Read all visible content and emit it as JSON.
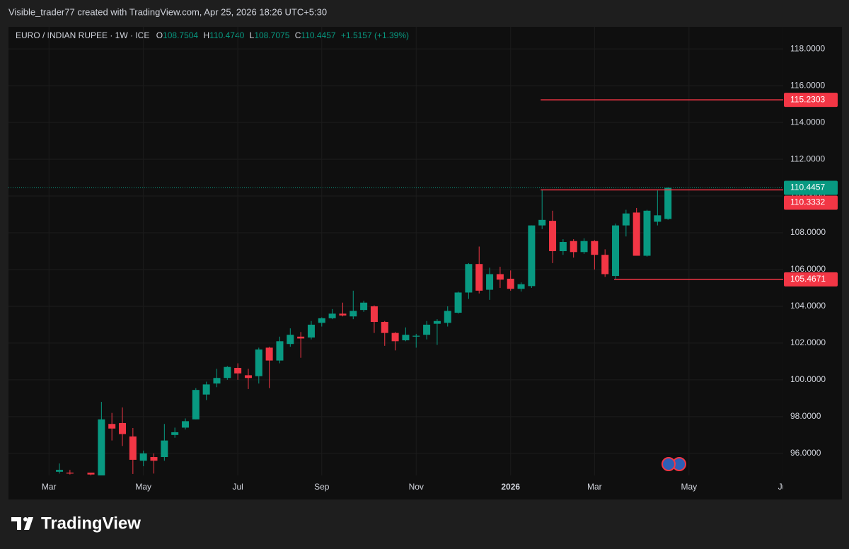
{
  "header": {
    "attribution": "Visible_trader77 created with TradingView.com, Apr 25, 2026 18:26 UTC+5:30",
    "ohlc": [
      {
        "key": "O",
        "text": "108.7504"
      },
      {
        "key": "H",
        "text": "110.4740"
      },
      {
        "key": "L",
        "text": "108.7075"
      },
      {
        "key": "C",
        "text": "110.4457"
      }
    ],
    "change": "+1.5157 (+1.39%)"
  },
  "footer": {
    "logo": "TradingView"
  },
  "chart_data": {
    "type": "candlestick",
    "title": "EURO / INDIAN RUPEE · 1W · ICE",
    "categories": [
      "Mar",
      null,
      null,
      null,
      null,
      null,
      null,
      null,
      null,
      "May",
      null,
      null,
      null,
      null,
      null,
      null,
      null,
      null,
      "Jul",
      null,
      null,
      null,
      null,
      null,
      null,
      null,
      "Sep",
      null,
      null,
      null,
      null,
      null,
      null,
      null,
      null,
      "Nov",
      null,
      null,
      null,
      null,
      null,
      null,
      null,
      null,
      "2026",
      null,
      null,
      null,
      null,
      null,
      null,
      null,
      "Mar",
      null,
      null,
      null,
      null,
      null,
      null,
      null,
      null,
      "May",
      null,
      null,
      null,
      null,
      null,
      null,
      null,
      null,
      "Jul"
    ],
    "open": [
      null,
      95.0,
      94.95,
      null,
      94.95,
      94.8,
      97.6,
      97.65,
      96.92,
      95.6,
      95.8,
      95.8,
      97.0,
      97.4,
      97.85,
      99.2,
      99.8,
      100.1,
      100.65,
      100.25,
      100.2,
      101.75,
      101.05,
      101.95,
      102.35,
      102.3,
      103.1,
      103.35,
      103.6,
      103.45,
      103.8,
      104.0,
      103.15,
      102.55,
      102.15,
      102.35,
      102.45,
      103.05,
      103.1,
      103.65,
      104.75,
      106.3,
      104.9,
      105.75,
      105.5,
      104.95,
      105.1,
      108.4,
      108.65,
      107.0,
      107.55,
      106.95,
      107.55,
      106.8,
      105.65,
      108.4,
      109.1,
      106.75,
      108.6,
      108.7504,
      null,
      null,
      null,
      null,
      null,
      null,
      null,
      null,
      null,
      null,
      null
    ],
    "high": [
      null,
      95.45,
      95.1,
      null,
      94.95,
      98.8,
      98.2,
      98.5,
      97.38,
      96.15,
      96.0,
      97.6,
      97.4,
      97.9,
      99.55,
      99.9,
      100.6,
      100.75,
      100.9,
      100.6,
      101.75,
      101.8,
      102.35,
      102.8,
      102.6,
      103.2,
      103.4,
      103.85,
      104.2,
      104.85,
      104.3,
      104.05,
      103.2,
      102.6,
      102.85,
      102.5,
      103.2,
      103.3,
      104.0,
      104.8,
      106.35,
      107.25,
      106.1,
      106.15,
      105.95,
      105.3,
      108.4,
      110.3332,
      109.2,
      107.65,
      107.65,
      107.7,
      107.6,
      107.1,
      108.5,
      109.25,
      109.35,
      109.25,
      110.3,
      110.474,
      null,
      null,
      null,
      null,
      null,
      null,
      null,
      null,
      null,
      null,
      null
    ],
    "low": [
      null,
      94.9,
      94.85,
      null,
      94.8,
      94.8,
      96.7,
      96.4,
      94.88,
      95.3,
      94.9,
      95.6,
      96.85,
      97.3,
      97.85,
      98.9,
      99.6,
      100.0,
      100.0,
      99.5,
      99.8,
      99.55,
      100.9,
      101.8,
      101.2,
      102.2,
      102.9,
      103.3,
      103.45,
      103.3,
      103.7,
      102.55,
      101.85,
      101.6,
      102.1,
      101.75,
      102.2,
      101.9,
      102.9,
      103.6,
      104.4,
      104.7,
      104.35,
      105.0,
      104.85,
      104.8,
      105.0,
      108.2,
      106.35,
      106.8,
      106.65,
      106.85,
      106.0,
      105.6,
      105.4671,
      107.8,
      106.75,
      106.7,
      108.4,
      108.7075,
      null,
      null,
      null,
      null,
      null,
      null,
      null,
      null,
      null,
      null,
      null
    ],
    "close": [
      null,
      95.1,
      94.9,
      null,
      94.85,
      97.85,
      97.35,
      97.05,
      95.65,
      96.0,
      95.6,
      96.7,
      97.15,
      97.75,
      99.45,
      99.75,
      100.1,
      100.7,
      100.35,
      100.1,
      101.65,
      101.05,
      102.1,
      102.45,
      102.25,
      103.0,
      103.35,
      103.6,
      103.5,
      103.75,
      104.2,
      103.15,
      102.55,
      102.1,
      102.45,
      102.4,
      103.0,
      103.2,
      103.75,
      104.75,
      106.3,
      104.85,
      105.75,
      105.45,
      104.95,
      105.2,
      108.4,
      108.7,
      107.0,
      107.5,
      106.95,
      107.55,
      106.8,
      105.75,
      108.4,
      109.05,
      106.75,
      109.2,
      108.95,
      110.4457,
      null,
      null,
      null,
      null,
      null,
      null,
      null,
      null,
      null,
      null,
      null
    ],
    "up_color": "#089981",
    "down_color": "#f23645",
    "ylim": [
      94.8,
      119.2
    ],
    "yticks": [
      {
        "value": 96,
        "label": "96.0000"
      },
      {
        "value": 98,
        "label": "98.0000"
      },
      {
        "value": 100,
        "label": "100.0000"
      },
      {
        "value": 102,
        "label": "102.0000"
      },
      {
        "value": 104,
        "label": "104.0000"
      },
      {
        "value": 106,
        "label": "106.0000"
      },
      {
        "value": 108,
        "label": "108.0000"
      },
      {
        "value": 110,
        "label": "110.0000"
      },
      {
        "value": 112,
        "label": "112.0000"
      },
      {
        "value": 114,
        "label": "114.0000"
      },
      {
        "value": 116,
        "label": "116.0000"
      },
      {
        "value": 118,
        "label": "118.0000"
      }
    ],
    "last_price": 110.4457,
    "levels": [
      115.2303,
      110.3332,
      105.4671
    ],
    "level_color": "#f23645",
    "grid": true
  }
}
